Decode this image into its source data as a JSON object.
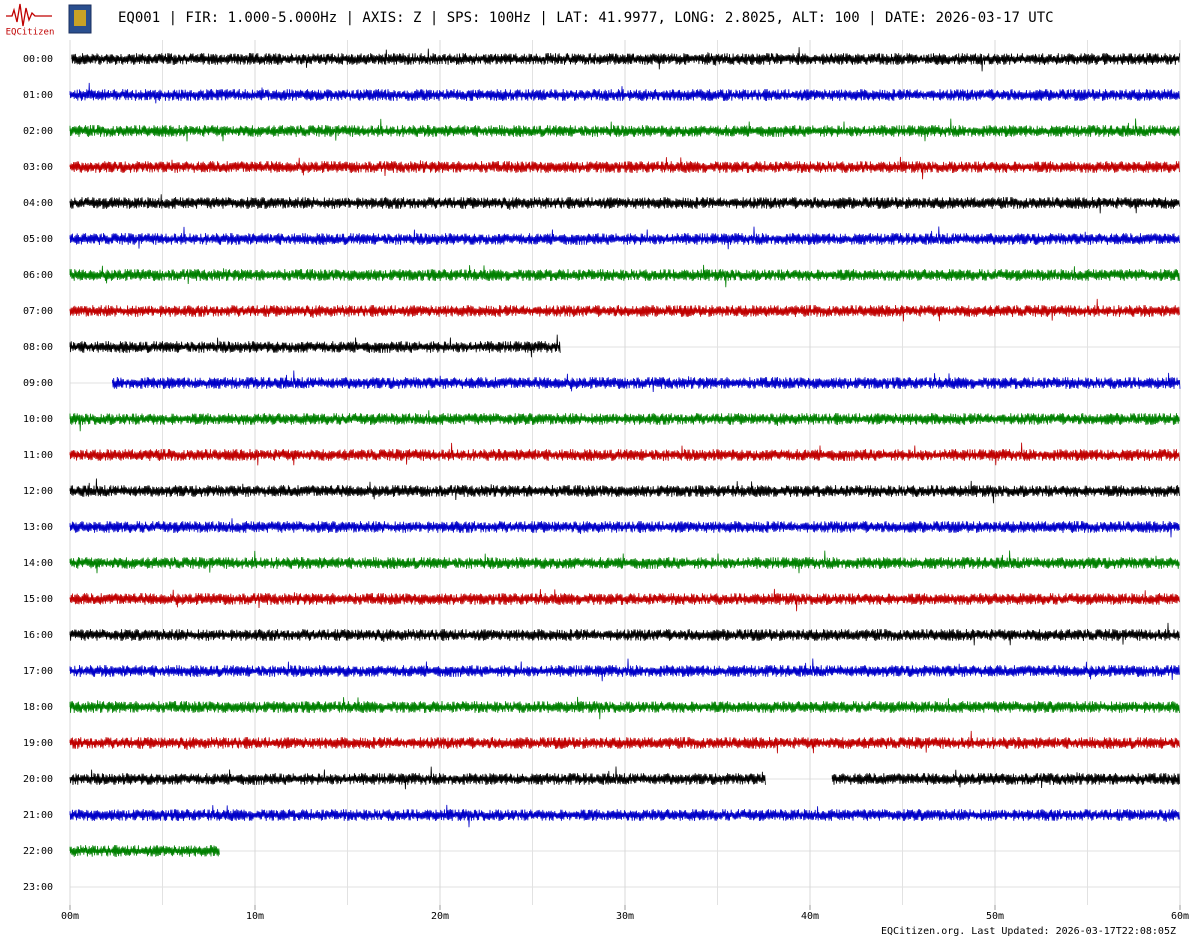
{
  "chart_data": {
    "type": "helicorder",
    "title": "EQ001 | FIR: 1.000-5.000Hz | AXIS: Z | SPS: 100Hz | LAT: 41.9977, LONG: 2.8025, ALT: 100 | DATE: 2026-03-17 UTC",
    "logo_text": "EQCitizen",
    "footer": "EQCitizen.org. Last Updated: 2026-03-17T22:08:05Z",
    "xlim": [
      0,
      60
    ],
    "xticks": [
      {
        "value": 0,
        "label": "00m"
      },
      {
        "value": 10,
        "label": "10m"
      },
      {
        "value": 20,
        "label": "20m"
      },
      {
        "value": 30,
        "label": "30m"
      },
      {
        "value": 40,
        "label": "40m"
      },
      {
        "value": 50,
        "label": "50m"
      },
      {
        "value": 60,
        "label": "60m"
      }
    ],
    "grid": true,
    "rows": [
      {
        "label": "00:00",
        "color": "#000000",
        "segments": [
          [
            0.1,
            60
          ]
        ]
      },
      {
        "label": "01:00",
        "color": "#0000c8",
        "segments": [
          [
            0,
            60
          ]
        ]
      },
      {
        "label": "02:00",
        "color": "#008000",
        "segments": [
          [
            0,
            60
          ]
        ]
      },
      {
        "label": "03:00",
        "color": "#c00000",
        "segments": [
          [
            0,
            60
          ]
        ]
      },
      {
        "label": "04:00",
        "color": "#000000",
        "segments": [
          [
            0,
            60
          ]
        ]
      },
      {
        "label": "05:00",
        "color": "#0000c8",
        "segments": [
          [
            0,
            60
          ]
        ]
      },
      {
        "label": "06:00",
        "color": "#008000",
        "segments": [
          [
            0,
            60
          ]
        ]
      },
      {
        "label": "07:00",
        "color": "#c00000",
        "segments": [
          [
            0,
            60
          ]
        ]
      },
      {
        "label": "08:00",
        "color": "#000000",
        "segments": [
          [
            0,
            26.5
          ]
        ]
      },
      {
        "label": "09:00",
        "color": "#0000c8",
        "segments": [
          [
            2.3,
            60
          ]
        ]
      },
      {
        "label": "10:00",
        "color": "#008000",
        "segments": [
          [
            0,
            60
          ]
        ]
      },
      {
        "label": "11:00",
        "color": "#c00000",
        "segments": [
          [
            0,
            60
          ]
        ]
      },
      {
        "label": "12:00",
        "color": "#000000",
        "segments": [
          [
            0,
            60
          ]
        ]
      },
      {
        "label": "13:00",
        "color": "#0000c8",
        "segments": [
          [
            0,
            60
          ]
        ]
      },
      {
        "label": "14:00",
        "color": "#008000",
        "segments": [
          [
            0,
            60
          ]
        ]
      },
      {
        "label": "15:00",
        "color": "#c00000",
        "segments": [
          [
            0,
            60
          ]
        ]
      },
      {
        "label": "16:00",
        "color": "#000000",
        "segments": [
          [
            0,
            60
          ]
        ]
      },
      {
        "label": "17:00",
        "color": "#0000c8",
        "segments": [
          [
            0,
            60
          ]
        ]
      },
      {
        "label": "18:00",
        "color": "#008000",
        "segments": [
          [
            0,
            60
          ]
        ]
      },
      {
        "label": "19:00",
        "color": "#c00000",
        "segments": [
          [
            0,
            60
          ]
        ]
      },
      {
        "label": "20:00",
        "color": "#000000",
        "segments": [
          [
            0,
            37.6
          ],
          [
            41.2,
            60
          ]
        ]
      },
      {
        "label": "21:00",
        "color": "#0000c8",
        "segments": [
          [
            0,
            60
          ]
        ]
      },
      {
        "label": "22:00",
        "color": "#008000",
        "segments": [
          [
            0,
            8.1
          ]
        ]
      },
      {
        "label": "23:00",
        "color": "#000000",
        "segments": []
      }
    ]
  }
}
